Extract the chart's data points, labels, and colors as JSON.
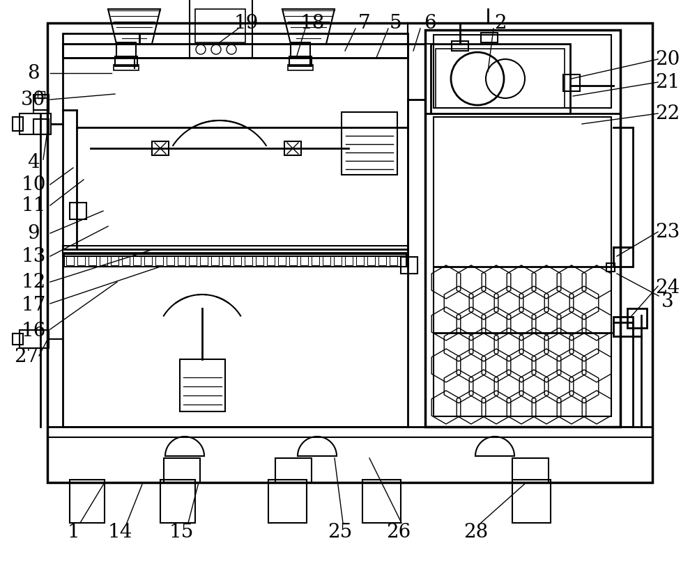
{
  "fig_width": 10.0,
  "fig_height": 8.23,
  "dpi": 100,
  "bg_color": "#ffffff",
  "lc": "#000000",
  "annotation_fontsize": 20,
  "annotations": [
    [
      "1",
      105,
      58,
      [
        [
          115,
          72
        ],
        [
          150,
          130
        ]
      ]
    ],
    [
      "2",
      718,
      790,
      [
        [
          708,
          782
        ],
        [
          700,
          720
        ]
      ]
    ],
    [
      "3",
      958,
      390,
      [
        [
          945,
          398
        ],
        [
          885,
          430
        ]
      ]
    ],
    [
      "4",
      48,
      590,
      [
        [
          62,
          594
        ],
        [
          68,
          635
        ]
      ]
    ],
    [
      "5",
      567,
      790,
      [
        [
          557,
          782
        ],
        [
          540,
          740
        ]
      ]
    ],
    [
      "6",
      617,
      790,
      [
        [
          603,
          782
        ],
        [
          593,
          750
        ]
      ]
    ],
    [
      "7",
      522,
      790,
      [
        [
          510,
          782
        ],
        [
          495,
          750
        ]
      ]
    ],
    [
      "8",
      48,
      718,
      [
        [
          72,
          718
        ],
        [
          160,
          718
        ]
      ]
    ],
    [
      "9",
      48,
      488,
      [
        [
          72,
          488
        ],
        [
          148,
          520
        ]
      ]
    ],
    [
      "10",
      48,
      558,
      [
        [
          72,
          558
        ],
        [
          105,
          582
        ]
      ]
    ],
    [
      "11",
      48,
      528,
      [
        [
          72,
          528
        ],
        [
          120,
          565
        ]
      ]
    ],
    [
      "12",
      48,
      418,
      [
        [
          72,
          418
        ],
        [
          220,
          465
        ]
      ]
    ],
    [
      "13",
      48,
      455,
      [
        [
          72,
          455
        ],
        [
          155,
          498
        ]
      ]
    ],
    [
      "14",
      172,
      58,
      [
        [
          182,
          72
        ],
        [
          205,
          130
        ]
      ]
    ],
    [
      "15",
      260,
      58,
      [
        [
          270,
          72
        ],
        [
          285,
          130
        ]
      ]
    ],
    [
      "16",
      48,
      348,
      [
        [
          72,
          350
        ],
        [
          168,
          418
        ]
      ]
    ],
    [
      "17",
      48,
      385,
      [
        [
          72,
          387
        ],
        [
          230,
          440
        ]
      ]
    ],
    [
      "18",
      448,
      790,
      [
        [
          438,
          782
        ],
        [
          425,
          740
        ]
      ]
    ],
    [
      "19",
      353,
      790,
      [
        [
          342,
          782
        ],
        [
          315,
          762
        ]
      ]
    ],
    [
      "20",
      958,
      738,
      [
        [
          944,
          738
        ],
        [
          820,
          710
        ]
      ]
    ],
    [
      "21",
      958,
      705,
      [
        [
          944,
          705
        ],
        [
          822,
          685
        ]
      ]
    ],
    [
      "22",
      958,
      660,
      [
        [
          944,
          660
        ],
        [
          835,
          645
        ]
      ]
    ],
    [
      "23",
      958,
      490,
      [
        [
          944,
          490
        ],
        [
          885,
          455
        ]
      ]
    ],
    [
      "24",
      958,
      410,
      [
        [
          944,
          412
        ],
        [
          905,
          368
        ]
      ]
    ],
    [
      "25",
      488,
      58,
      [
        [
          492,
          72
        ],
        [
          480,
          165
        ]
      ]
    ],
    [
      "26",
      572,
      58,
      [
        [
          576,
          72
        ],
        [
          530,
          165
        ]
      ]
    ],
    [
      "27",
      38,
      310,
      [
        [
          56,
          312
        ],
        [
          68,
          335
        ]
      ]
    ],
    [
      "28",
      683,
      58,
      [
        [
          690,
          72
        ],
        [
          755,
          130
        ]
      ]
    ],
    [
      "30",
      48,
      680,
      [
        [
          72,
          680
        ],
        [
          165,
          688
        ]
      ]
    ]
  ]
}
